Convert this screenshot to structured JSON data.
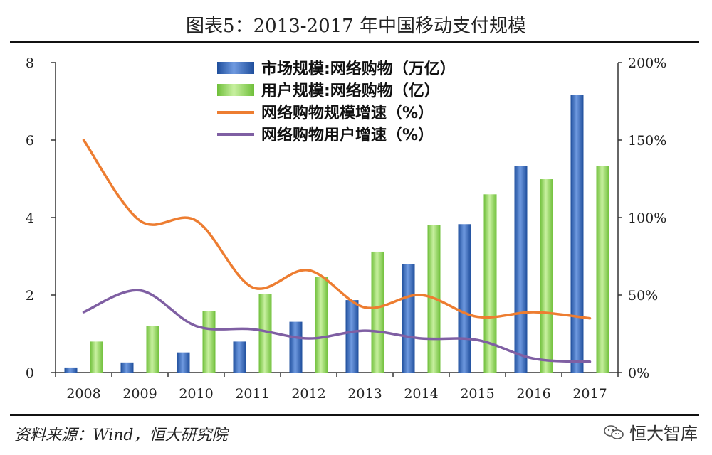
{
  "title": "图表5：2013-2017 年中国移动支付规模",
  "source": "资料来源：Wind，恒大研究院",
  "watermark": "恒大智库",
  "chart_data": {
    "type": "bar",
    "categories": [
      "2008",
      "2009",
      "2010",
      "2011",
      "2012",
      "2013",
      "2014",
      "2015",
      "2016",
      "2017"
    ],
    "series": [
      {
        "name": "市场规模:网络购物（万亿）",
        "type": "bar",
        "axis": "left",
        "color": "#3a6fc1",
        "values": [
          0.13,
          0.26,
          0.52,
          0.8,
          1.31,
          1.87,
          2.8,
          3.83,
          5.33,
          7.17
        ]
      },
      {
        "name": "用户规模:网络购物（亿）",
        "type": "bar",
        "axis": "left",
        "color": "#8ed15a",
        "values": [
          0.8,
          1.21,
          1.58,
          2.03,
          2.47,
          3.12,
          3.8,
          4.6,
          4.99,
          5.33
        ]
      },
      {
        "name": "网络购物规模增速（%）",
        "type": "line",
        "axis": "right",
        "color": "#ed7d31",
        "values": [
          150,
          98,
          98,
          55,
          66,
          42,
          50,
          36,
          39,
          35
        ]
      },
      {
        "name": "网络购物用户增速（%）",
        "type": "line",
        "axis": "right",
        "color": "#7f5fa3",
        "values": [
          39,
          53,
          30,
          28,
          22,
          27,
          22,
          21,
          9,
          7
        ]
      }
    ],
    "left_axis": {
      "min": 0,
      "max": 8,
      "ticks": [
        "0",
        "2",
        "4",
        "6",
        "8"
      ],
      "tick_values": [
        0,
        2,
        4,
        6,
        8
      ]
    },
    "right_axis": {
      "min": 0,
      "max": 200,
      "ticks": [
        "0%",
        "50%",
        "100%",
        "150%",
        "200%"
      ],
      "tick_values": [
        0,
        50,
        100,
        150,
        200
      ]
    },
    "grid": false,
    "legend_position": "top-left"
  }
}
